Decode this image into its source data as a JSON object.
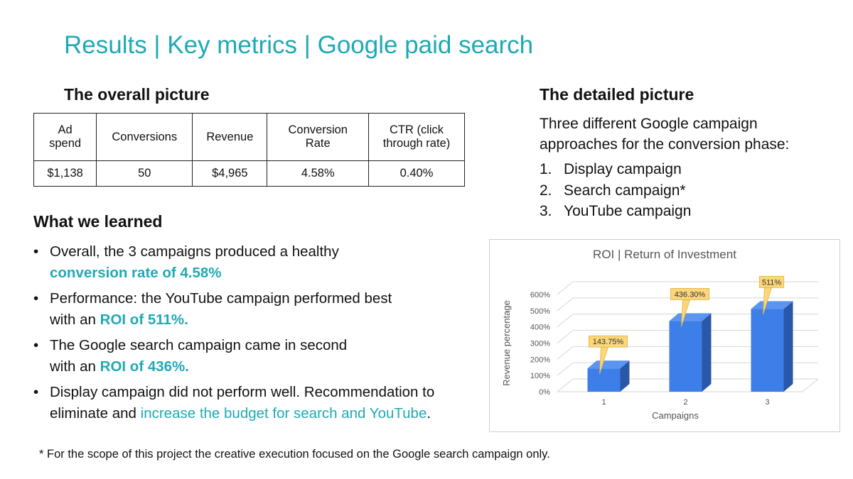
{
  "title": "Results | Key metrics | Google paid search",
  "overall": {
    "heading": "The overall picture",
    "headers": [
      "Ad\nspend",
      "Conversions",
      "Revenue",
      "Conversion\nRate",
      "CTR (click\nthrough rate)"
    ],
    "values": [
      "$1,138",
      "50",
      "$4,965",
      "4.58%",
      "0.40%"
    ]
  },
  "detailed": {
    "heading": "The detailed picture",
    "intro": "Three different Google campaign approaches for the conversion phase:",
    "items": [
      {
        "num": "1.",
        "label": "Display campaign"
      },
      {
        "num": "2.",
        "label": "Search campaign*"
      },
      {
        "num": "3.",
        "label": "YouTube campaign"
      }
    ]
  },
  "learned": {
    "heading": "What we learned",
    "bullet": "•",
    "items": [
      {
        "a": "Overall, the 3 campaigns produced a healthy",
        "b": "",
        "hl": "conversion rate of 4.58%",
        "c": ""
      },
      {
        "a": "Performance: the YouTube campaign performed best",
        "b": "with an ",
        "hl": "ROI of 511%.",
        "c": ""
      },
      {
        "a": "The Google search campaign came in second",
        "b": "with an ",
        "hl": "ROI of 436%.",
        "c": ""
      },
      {
        "a": "Display campaign did not perform well. Recommendation to",
        "b": "eliminate and ",
        "hl": "increase the budget for search and YouTube",
        "c": "."
      }
    ]
  },
  "chart_data": {
    "type": "bar",
    "title": "ROI | Return of Investment",
    "xlabel": "Campaigns",
    "ylabel": "Revenue percentage",
    "categories": [
      "1",
      "2",
      "3"
    ],
    "values": [
      143.75,
      436.3,
      511
    ],
    "data_labels": [
      "143.75%",
      "436.30%",
      "511%"
    ],
    "yticks": [
      "0%",
      "100%",
      "200%",
      "300%",
      "400%",
      "500%",
      "600%"
    ],
    "ylim": [
      0,
      600
    ],
    "grid": true,
    "style": "3d-column",
    "bar_color": "#3d7ee8",
    "label_fill": "#fbd77a"
  },
  "footnote": "* For the scope of this project the creative execution focused on the Google search campaign only.",
  "colors": {
    "accent": "#1fa9b5"
  }
}
